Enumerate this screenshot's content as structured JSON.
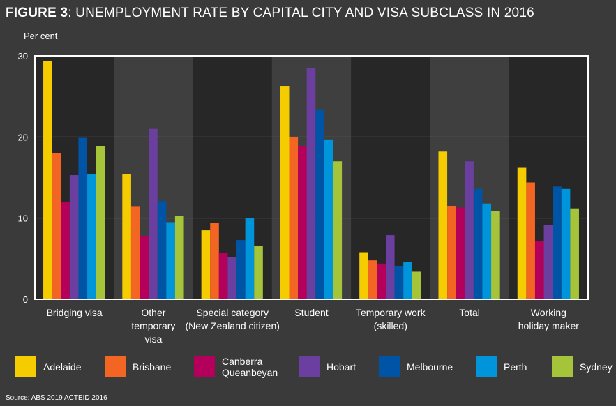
{
  "figure": {
    "label": "FIGURE 3",
    "title": ": UNEMPLOYMENT RATE BY CAPITAL CITY AND VISA SUBCLASS IN 2016"
  },
  "source": "Source: ABS 2019 ACTEID 2016",
  "chart_data": {
    "type": "bar",
    "ylabel": "Per cent",
    "ylim": [
      0,
      30
    ],
    "yticks": [
      0,
      10,
      20,
      30
    ],
    "grid": true,
    "legend_position": "bottom",
    "categories": [
      [
        "Bridging visa"
      ],
      [
        "Other",
        "temporary",
        "visa"
      ],
      [
        "Special category",
        "(New Zealand citizen)"
      ],
      [
        "Student"
      ],
      [
        "Temporary work",
        "(skilled)"
      ],
      [
        "Total"
      ],
      [
        "Working",
        "holiday maker"
      ]
    ],
    "series": [
      {
        "name": "Adelaide",
        "color": "#f5cc00",
        "values": [
          29.4,
          15.4,
          8.5,
          26.3,
          5.8,
          18.2,
          16.2
        ]
      },
      {
        "name": "Brisbane",
        "color": "#f26522",
        "values": [
          18.0,
          11.4,
          9.4,
          20.0,
          4.8,
          11.5,
          14.4
        ]
      },
      {
        "name": "Canberra Queanbeyan",
        "color": "#b5005b",
        "values": [
          12.0,
          7.8,
          5.7,
          18.9,
          4.4,
          11.3,
          7.2
        ]
      },
      {
        "name": "Hobart",
        "color": "#6a3fa0",
        "values": [
          15.3,
          21.0,
          5.2,
          28.5,
          7.9,
          17.0,
          9.2
        ]
      },
      {
        "name": "Melbourne",
        "color": "#0054a6",
        "values": [
          19.9,
          12.1,
          7.3,
          23.4,
          4.1,
          13.6,
          13.9
        ]
      },
      {
        "name": "Perth",
        "color": "#0095da",
        "values": [
          15.4,
          9.5,
          10.0,
          19.7,
          4.6,
          11.8,
          13.6
        ]
      },
      {
        "name": "Sydney",
        "color": "#a6c43a",
        "values": [
          18.9,
          10.3,
          6.6,
          17.0,
          3.4,
          10.9,
          11.2
        ]
      }
    ],
    "legend_lines": [
      [
        "Adelaide"
      ],
      [
        "Brisbane"
      ],
      [
        "Canberra",
        "Queanbeyan"
      ],
      [
        "Hobart"
      ],
      [
        "Melbourne"
      ],
      [
        "Perth"
      ],
      [
        "Sydney"
      ]
    ]
  }
}
